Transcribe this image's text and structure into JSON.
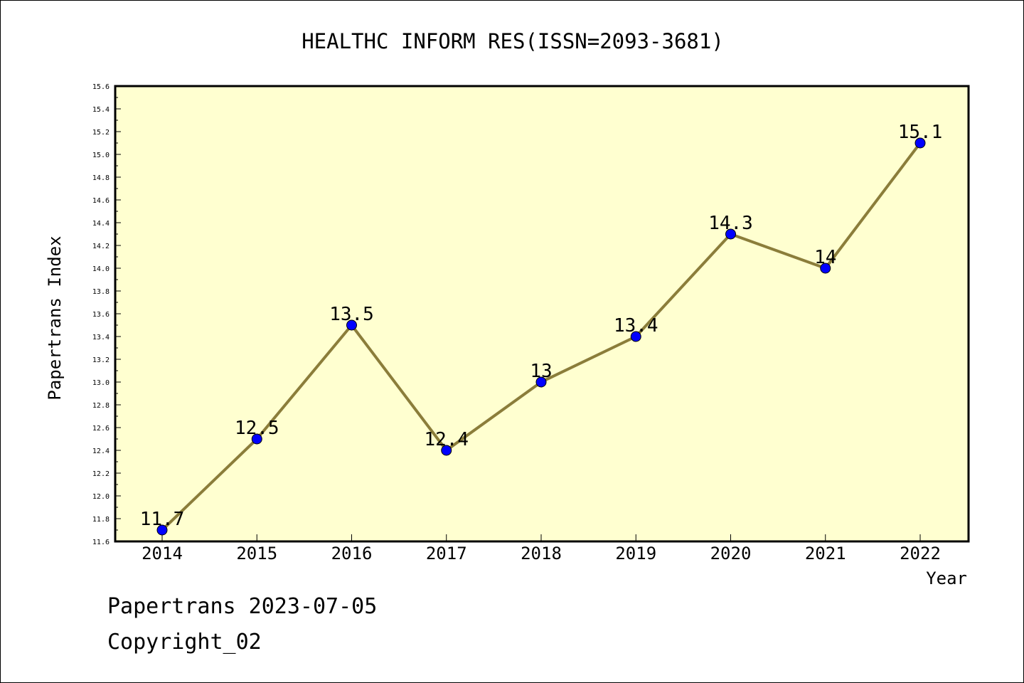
{
  "chart_data": {
    "type": "line",
    "title": "HEALTHC INFORM RES(ISSN=2093-3681)",
    "xlabel": "Year",
    "ylabel": "Papertrans Index",
    "categories": [
      "2014",
      "2015",
      "2016",
      "2017",
      "2018",
      "2019",
      "2020",
      "2021",
      "2022"
    ],
    "values": [
      11.7,
      12.5,
      13.5,
      12.4,
      13.0,
      13.4,
      14.3,
      14.0,
      15.1
    ],
    "data_labels": [
      "11.7",
      "12.5",
      "13.5",
      "12.4",
      "13",
      "13.4",
      "14.3",
      "14",
      "15.1"
    ],
    "ylim": [
      11.6,
      15.6
    ],
    "yticks": [
      "11.6",
      "11.8",
      "12.0",
      "12.2",
      "12.4",
      "12.6",
      "12.8",
      "13.0",
      "13.2",
      "13.4",
      "13.6",
      "13.8",
      "14.0",
      "14.2",
      "14.4",
      "14.6",
      "14.8",
      "15.0",
      "15.2",
      "15.4",
      "15.6"
    ],
    "grid": false,
    "colors": {
      "plot_background": "#ffffd0",
      "line": "#8b7d3a",
      "marker": "#0000ff"
    }
  },
  "footer": {
    "date_line": "Papertrans 2023-07-05",
    "copyright_line": "Copyright_02"
  }
}
